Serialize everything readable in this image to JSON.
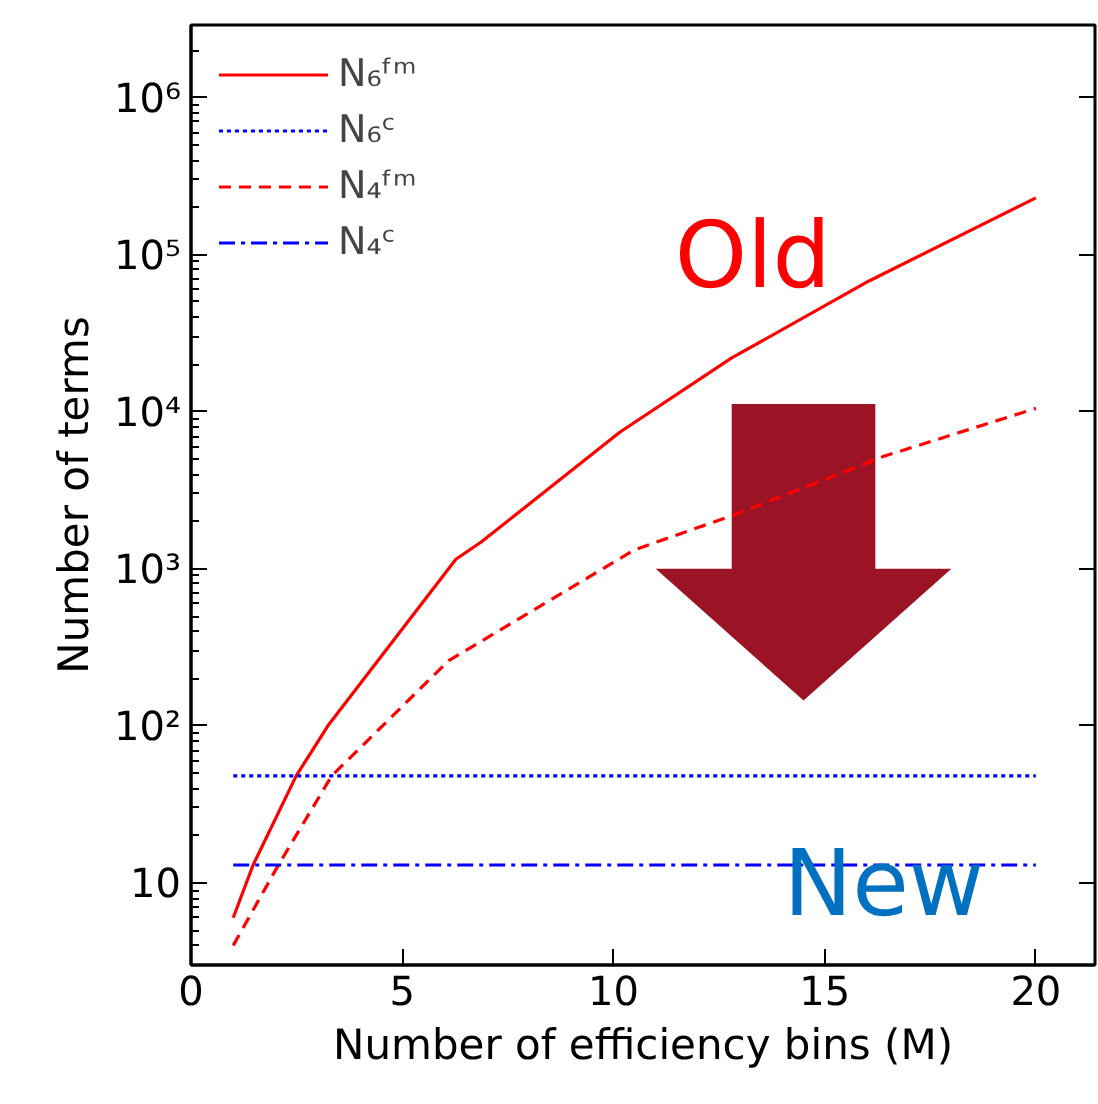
{
  "chart_data": {
    "type": "line",
    "xlabel": "Number of efficiency bins (M)",
    "ylabel": "Number of terms",
    "log": "y",
    "grid": false,
    "legend": "top left",
    "marker": "none",
    "xlim": [
      0,
      21.4
    ],
    "xticks": [
      0,
      5,
      10,
      15,
      20
    ],
    "ylim": [
      3,
      2900000
    ],
    "yticks": [
      {
        "value": 10,
        "label": "10"
      },
      {
        "value": 100,
        "label": "10²"
      },
      {
        "value": 1000,
        "label": "10³"
      },
      {
        "value": 10000,
        "label": "10⁴"
      },
      {
        "value": 100000,
        "label": "10⁵"
      },
      {
        "value": 1000000,
        "label": "10⁶"
      }
    ],
    "annotations": [
      "Old",
      "New"
    ],
    "series": [
      {
        "name": "N₆ᶠᵐ",
        "color": "#ff0000",
        "line_style": "solid",
        "x": [
          1,
          1.47,
          2.49,
          3.24,
          6.27,
          6.87,
          10.15,
          12.8,
          16.05,
          20
        ],
        "values": [
          6,
          13,
          48,
          100,
          1150,
          1480,
          7400,
          22000,
          68000,
          230000
        ]
      },
      {
        "name": "N₆ᶜ",
        "color": "#0000ff",
        "line_style": "dotted",
        "x": [
          1,
          20
        ],
        "values": [
          48,
          48
        ]
      },
      {
        "name": "N₄ᶠᵐ",
        "color": "#ff0000",
        "line_style": "dashed",
        "x": [
          1,
          2.07,
          3.33,
          6.1,
          10.5,
          12.85,
          16.4,
          20
        ],
        "values": [
          4,
          13,
          48,
          260,
          1320,
          2200,
          5200,
          10500
        ]
      },
      {
        "name": "N₄ᶜ",
        "color": "#0000ff",
        "line_style": "dashdot",
        "x": [
          1,
          20
        ],
        "values": [
          13,
          13
        ]
      }
    ]
  }
}
